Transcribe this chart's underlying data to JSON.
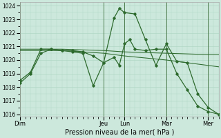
{
  "bg_color": "#cce8dc",
  "grid_color": "#aad4c0",
  "line_color": "#2d6a2d",
  "marker_color": "#2d6a2d",
  "ylabel_min": 1016,
  "ylabel_max": 1024,
  "yticks": [
    1016,
    1017,
    1018,
    1019,
    1020,
    1021,
    1022,
    1023,
    1024
  ],
  "xlabel": "Pression niveau de la mer( hPa )",
  "day_labels": [
    "Dim",
    "Jeu",
    "Lun",
    "Mar",
    "Mer"
  ],
  "day_x": [
    0,
    48,
    60,
    84,
    108
  ],
  "xlim": [
    0,
    114
  ],
  "series": [
    {
      "x": [
        0,
        6,
        12,
        18,
        24,
        30,
        36,
        42,
        48,
        54,
        57,
        60,
        66,
        72,
        78,
        84,
        90,
        96,
        102,
        108,
        114
      ],
      "y": [
        1018.5,
        1019.1,
        1020.8,
        1020.8,
        1020.7,
        1020.7,
        1020.6,
        1020.3,
        1019.8,
        1023.1,
        1023.8,
        1023.5,
        1023.4,
        1021.5,
        1019.6,
        1021.2,
        1019.9,
        1019.8,
        1017.5,
        1016.5,
        1016.0
      ],
      "marker": true,
      "linewidth": 0.9
    },
    {
      "x": [
        0,
        24,
        48,
        60,
        84,
        108,
        114
      ],
      "y": [
        1020.8,
        1020.8,
        1020.7,
        1020.6,
        1020.5,
        1020.4,
        1020.4
      ],
      "marker": false,
      "linewidth": 0.75
    },
    {
      "x": [
        0,
        24,
        48,
        60,
        84,
        108,
        114
      ],
      "y": [
        1020.7,
        1020.7,
        1020.5,
        1020.3,
        1020.0,
        1019.6,
        1019.5
      ],
      "marker": false,
      "linewidth": 0.75
    },
    {
      "x": [
        0,
        6,
        12,
        18,
        24,
        30,
        36,
        42,
        48,
        54,
        57,
        60,
        63,
        66,
        72,
        78,
        84,
        90,
        96,
        102,
        108,
        114
      ],
      "y": [
        1018.3,
        1019.0,
        1020.5,
        1020.8,
        1020.7,
        1020.6,
        1020.5,
        1018.1,
        1019.8,
        1020.2,
        1019.6,
        1021.2,
        1021.5,
        1020.8,
        1020.7,
        1020.8,
        1020.8,
        1019.0,
        1017.8,
        1016.6,
        1016.2,
        1016.0
      ],
      "marker": true,
      "linewidth": 0.9
    }
  ],
  "figsize": [
    3.2,
    2.0
  ],
  "dpi": 100
}
